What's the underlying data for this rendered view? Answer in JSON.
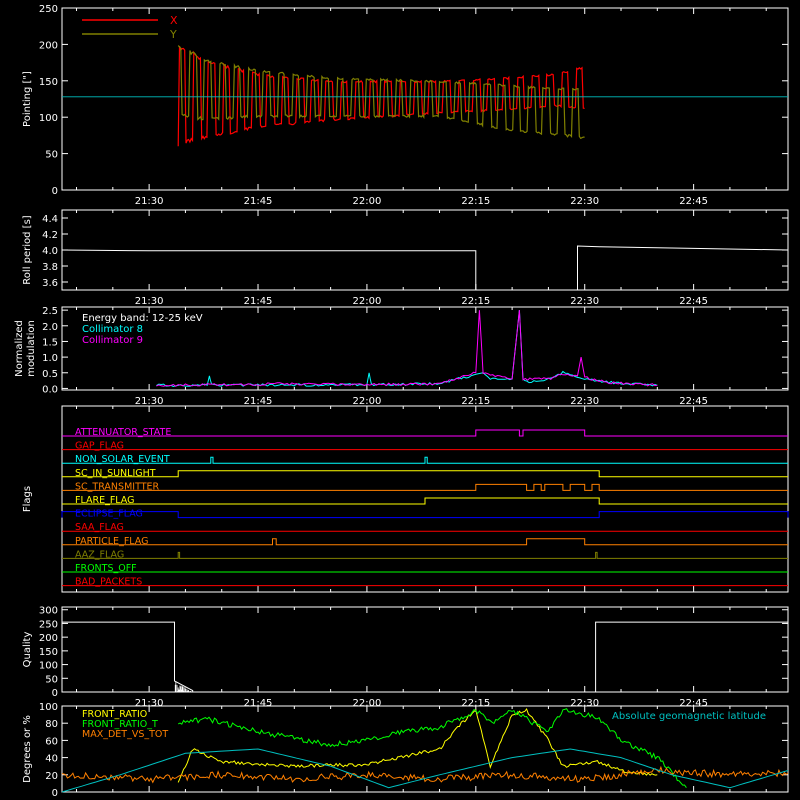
{
  "colors": {
    "background": "#000000",
    "axes": "#ffffff",
    "x_series": "#ff0000",
    "y_series": "#808000",
    "collimator8": "#00ffff",
    "collimator9": "#ff00ff",
    "front_ratio": "#ffff00",
    "front_ratio_t": "#00ff00",
    "max_det_vs_tot": "#ff8000",
    "geomag": "#00c0c0"
  },
  "time_axis": {
    "ticks": [
      "21:30",
      "21:45",
      "22:00",
      "22:15",
      "22:30",
      "22:45"
    ],
    "tick_minutes": [
      0,
      15,
      30,
      45,
      60,
      75
    ],
    "range_minutes": [
      -12,
      88
    ]
  },
  "chart_data": [
    {
      "type": "line",
      "ylabel": "Pointing [\"]",
      "ylim": [
        0,
        250
      ],
      "yticks": [
        "0",
        "50",
        "100",
        "150",
        "200",
        "250"
      ],
      "ytick_values": [
        0,
        50,
        100,
        150,
        200,
        250
      ],
      "legend": [
        "X",
        "Y"
      ],
      "reference_line": 128,
      "series": [
        {
          "name": "X",
          "envelope": [
            [
              4,
              60,
              200
            ],
            [
              8,
              70,
              180
            ],
            [
              15,
              85,
              160
            ],
            [
              25,
              95,
              150
            ],
            [
              40,
              105,
              150
            ],
            [
              50,
              110,
              155
            ],
            [
              56,
              115,
              160
            ],
            [
              60,
              110,
              170
            ]
          ]
        },
        {
          "name": "Y",
          "envelope": [
            [
              4,
              100,
              200
            ],
            [
              8,
              95,
              180
            ],
            [
              15,
              100,
              165
            ],
            [
              25,
              100,
              155
            ],
            [
              40,
              100,
              150
            ],
            [
              50,
              80,
              145
            ],
            [
              56,
              75,
              140
            ],
            [
              60,
              70,
              140
            ]
          ]
        }
      ]
    },
    {
      "type": "line",
      "ylabel": "Roll period [s]",
      "ylim": [
        3.5,
        4.5
      ],
      "yticks": [
        "3.6",
        "3.8",
        "4.0",
        "4.2",
        "4.4"
      ],
      "ytick_values": [
        3.6,
        3.8,
        4.0,
        4.2,
        4.4
      ],
      "x": [
        -12,
        0,
        30,
        45,
        45,
        59,
        59,
        62,
        75,
        88
      ],
      "y": [
        4.0,
        3.99,
        3.99,
        3.99,
        3.5,
        3.5,
        4.05,
        4.04,
        4.02,
        4.0
      ]
    },
    {
      "type": "line",
      "ylabel": "Normalized modulation",
      "ylim": [
        -0.05,
        2.6
      ],
      "yticks": [
        "0.0",
        "0.5",
        "1.0",
        "1.5",
        "2.0",
        "2.5"
      ],
      "ytick_values": [
        0,
        0.5,
        1.0,
        1.5,
        2.0,
        2.5
      ],
      "legend": [
        "Energy band: 12-25 keV",
        "Collimator 8",
        "Collimator 9"
      ],
      "series": [
        {
          "name": "Collimator 8",
          "points": [
            [
              1,
              0.1
            ],
            [
              8,
              0.1
            ],
            [
              8.3,
              0.4
            ],
            [
              8.6,
              0.1
            ],
            [
              30,
              0.12
            ],
            [
              30.3,
              0.5
            ],
            [
              30.6,
              0.12
            ],
            [
              40,
              0.15
            ],
            [
              45,
              0.45
            ],
            [
              46,
              0.5
            ],
            [
              47,
              0.3
            ],
            [
              50,
              0.3
            ],
            [
              51,
              2.5
            ],
            [
              51.5,
              0.3
            ],
            [
              52,
              0.2
            ],
            [
              55,
              0.3
            ],
            [
              57,
              0.5
            ],
            [
              60,
              0.3
            ],
            [
              63,
              0.2
            ],
            [
              70,
              0.1
            ]
          ]
        },
        {
          "name": "Collimator 9",
          "points": [
            [
              1,
              0.1
            ],
            [
              10,
              0.12
            ],
            [
              20,
              0.15
            ],
            [
              30,
              0.12
            ],
            [
              40,
              0.15
            ],
            [
              45,
              0.5
            ],
            [
              45.5,
              2.5
            ],
            [
              46,
              0.5
            ],
            [
              50,
              0.3
            ],
            [
              51,
              2.5
            ],
            [
              51.5,
              0.3
            ],
            [
              55,
              0.3
            ],
            [
              57,
              0.45
            ],
            [
              59,
              0.4
            ],
            [
              59.5,
              1.0
            ],
            [
              60,
              0.35
            ],
            [
              63,
              0.2
            ],
            [
              70,
              0.1
            ]
          ]
        }
      ]
    },
    {
      "type": "line",
      "ylabel": "Flags",
      "flags": [
        {
          "name": "ATTENUATOR_STATE",
          "color": "#ff00ff",
          "on": [
            [
              45,
              51
            ],
            [
              51.5,
              60
            ]
          ]
        },
        {
          "name": "GAP_FLAG",
          "color": "#ff0000",
          "on": []
        },
        {
          "name": "NON_SOLAR_EVENT",
          "color": "#00ffff",
          "on": [
            [
              8.5,
              8.8
            ],
            [
              38,
              38.3
            ]
          ]
        },
        {
          "name": "SC_IN_SUNLIGHT",
          "color": "#ffff00",
          "on": [
            [
              4,
              62
            ]
          ]
        },
        {
          "name": "SC_TRANSMITTER",
          "color": "#ff8000",
          "on": [
            [
              45,
              52
            ],
            [
              53,
              54
            ],
            [
              54.5,
              57
            ],
            [
              58,
              60
            ],
            [
              61,
              62
            ]
          ]
        },
        {
          "name": "FLARE_FLAG",
          "color": "#ffff00",
          "on": [
            [
              38,
              62
            ]
          ]
        },
        {
          "name": "ECLIPSE_FLAG",
          "color": "#0000ff",
          "on": [
            [
              -12,
              4
            ],
            [
              62,
              88
            ]
          ]
        },
        {
          "name": "SAA_FLAG",
          "color": "#ff0000",
          "on": []
        },
        {
          "name": "PARTICLE_FLAG",
          "color": "#ff8000",
          "on": [
            [
              17,
              17.5
            ],
            [
              52,
              60
            ]
          ]
        },
        {
          "name": "AAZ_FLAG",
          "color": "#808000",
          "on": [
            [
              4,
              4.2
            ],
            [
              61.5,
              61.7
            ]
          ]
        },
        {
          "name": "FRONTS_OFF",
          "color": "#00ff00",
          "on": []
        },
        {
          "name": "BAD_PACKETS",
          "color": "#ff0000",
          "on": []
        }
      ]
    },
    {
      "type": "area",
      "ylabel": "Quality",
      "ylim": [
        0,
        310
      ],
      "yticks": [
        "0",
        "50",
        "100",
        "150",
        "200",
        "250",
        "300"
      ],
      "ytick_values": [
        0,
        50,
        100,
        150,
        200,
        250,
        300
      ],
      "x": [
        -12,
        3.5,
        3.5,
        6,
        6,
        61.5,
        61.5,
        88
      ],
      "y": [
        255,
        255,
        40,
        5,
        0,
        0,
        255,
        255
      ]
    },
    {
      "type": "line",
      "ylabel": "Degrees or %",
      "ylim": [
        0,
        100
      ],
      "yticks": [
        "0",
        "20",
        "40",
        "60",
        "80",
        "100"
      ],
      "ytick_values": [
        0,
        20,
        40,
        60,
        80,
        100
      ],
      "legend": [
        "FRONT_RATIO",
        "FRONT_RATIO_T",
        "MAX_DET_VS_TOT",
        "Absolute geomagnetic latitude"
      ],
      "series": [
        {
          "name": "FRONT_RATIO",
          "points": [
            [
              4,
              10
            ],
            [
              6,
              50
            ],
            [
              10,
              35
            ],
            [
              20,
              30
            ],
            [
              30,
              32
            ],
            [
              40,
              50
            ],
            [
              43,
              80
            ],
            [
              45,
              95
            ],
            [
              47,
              30
            ],
            [
              50,
              90
            ],
            [
              52,
              95
            ],
            [
              55,
              60
            ],
            [
              57,
              30
            ],
            [
              62,
              35
            ],
            [
              65,
              25
            ],
            [
              70,
              20
            ]
          ]
        },
        {
          "name": "FRONT_RATIO_T",
          "points": [
            [
              4,
              80
            ],
            [
              8,
              85
            ],
            [
              15,
              70
            ],
            [
              25,
              55
            ],
            [
              30,
              60
            ],
            [
              35,
              70
            ],
            [
              40,
              75
            ],
            [
              45,
              95
            ],
            [
              47,
              80
            ],
            [
              50,
              95
            ],
            [
              55,
              70
            ],
            [
              57,
              95
            ],
            [
              60,
              90
            ],
            [
              62,
              85
            ],
            [
              65,
              60
            ],
            [
              70,
              40
            ],
            [
              74,
              5
            ]
          ]
        },
        {
          "name": "MAX_DET_VS_TOT",
          "points": [
            [
              -12,
              20
            ],
            [
              0,
              15
            ],
            [
              10,
              20
            ],
            [
              20,
              15
            ],
            [
              30,
              20
            ],
            [
              40,
              15
            ],
            [
              50,
              20
            ],
            [
              60,
              15
            ],
            [
              70,
              25
            ],
            [
              80,
              20
            ],
            [
              88,
              22
            ]
          ]
        },
        {
          "name": "Absolute geomagnetic latitude",
          "points": [
            [
              -12,
              0
            ],
            [
              -4,
              20
            ],
            [
              5,
              45
            ],
            [
              15,
              50
            ],
            [
              25,
              30
            ],
            [
              33,
              5
            ],
            [
              40,
              20
            ],
            [
              50,
              40
            ],
            [
              58,
              50
            ],
            [
              65,
              40
            ],
            [
              72,
              20
            ],
            [
              80,
              5
            ],
            [
              88,
              25
            ]
          ]
        }
      ]
    }
  ]
}
